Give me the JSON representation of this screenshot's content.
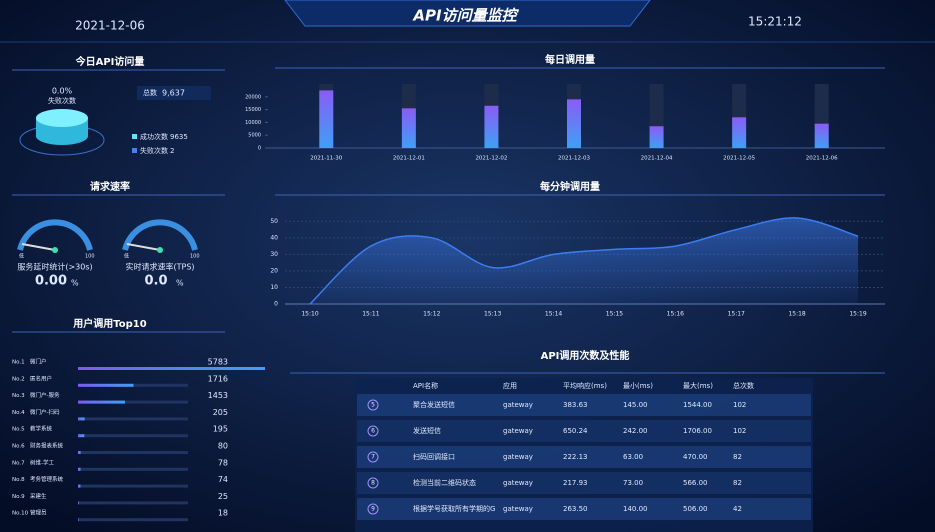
{
  "header": {
    "title": "API访问量监控",
    "date": "2021-12-06",
    "time": "15:21:12"
  },
  "today": {
    "title": "今日API访问量",
    "rate": "0.0%",
    "rate_label": "失败次数",
    "total_label": "总数",
    "total": "9,637",
    "legend": [
      {
        "name": "成功次数",
        "value": "9635",
        "color": "#5ee6f5"
      },
      {
        "name": "失败次数",
        "value": "2",
        "color": "#4a7ff0"
      }
    ]
  },
  "speed": {
    "title": "请求速率",
    "gauges": [
      {
        "name": "服务延时统计(>30s)",
        "value": "0.00",
        "unit": "%",
        "min": "低",
        "max": "100"
      },
      {
        "name": "实时请求速率(TPS)",
        "value": "0.0",
        "unit": "%",
        "min": "低",
        "max": "100"
      }
    ]
  },
  "chart_data": [
    {
      "type": "bar",
      "title": "每日调用量",
      "categories": [
        "2021-11-30",
        "2021-12-01",
        "2021-12-02",
        "2021-12-03",
        "2021-12-04",
        "2021-12-05",
        "2021-12-06"
      ],
      "values": [
        22500,
        15500,
        16500,
        19000,
        8500,
        12000,
        9500
      ],
      "color": "#4f8df5",
      "ylim": [
        0,
        25000
      ],
      "yticks": [
        0,
        5000,
        10000,
        15000,
        20000
      ]
    },
    {
      "type": "line",
      "title": "每分钟调用量",
      "categories": [
        "15:10",
        "15:11",
        "15:12",
        "15:13",
        "15:14",
        "15:15",
        "15:16",
        "15:17",
        "15:18",
        "15:19"
      ],
      "values": [
        0,
        35,
        40,
        22,
        30,
        33,
        35,
        45,
        52,
        41
      ],
      "color": "#3d7cf0",
      "ylim": [
        0,
        55
      ],
      "yticks": [
        0,
        10,
        20,
        30,
        40,
        50
      ],
      "grid": true
    },
    {
      "type": "hbar",
      "title": "用户调用Top10",
      "ranks": [
        "No.1",
        "No.2",
        "No.3",
        "No.4",
        "No.5",
        "No.6",
        "No.7",
        "No.8",
        "No.9",
        "No.10"
      ],
      "categories": [
        "微门户",
        "匿名用户",
        "微门户-服务",
        "微门户-扫码",
        "教学系统",
        "财务报表系统",
        "树维-学工",
        "考务管理系统",
        "采建生",
        "管理员"
      ],
      "values": [
        5783,
        1716,
        1453,
        205,
        195,
        80,
        78,
        74,
        25,
        18
      ],
      "color": "#7b5cf0"
    }
  ],
  "table": {
    "title": "API调用次数及性能",
    "columns": [
      "API名称",
      "应用",
      "平均响应(ms)",
      "最小(ms)",
      "最大(ms)",
      "总次数"
    ],
    "rows": [
      [
        "5",
        "聚合发送短信",
        "gateway",
        "383.63",
        "145.00",
        "1544.00",
        "102"
      ],
      [
        "6",
        "发送短信",
        "gateway",
        "650.24",
        "242.00",
        "1706.00",
        "102"
      ],
      [
        "7",
        "扫码回调接口",
        "gateway",
        "222.13",
        "63.00",
        "470.00",
        "82"
      ],
      [
        "8",
        "检测当前二维码状态",
        "gateway",
        "217.93",
        "73.00",
        "566.00",
        "82"
      ],
      [
        "9",
        "根据学号获取所有学期的G",
        "gateway",
        "263.50",
        "140.00",
        "506.00",
        "42"
      ]
    ]
  }
}
